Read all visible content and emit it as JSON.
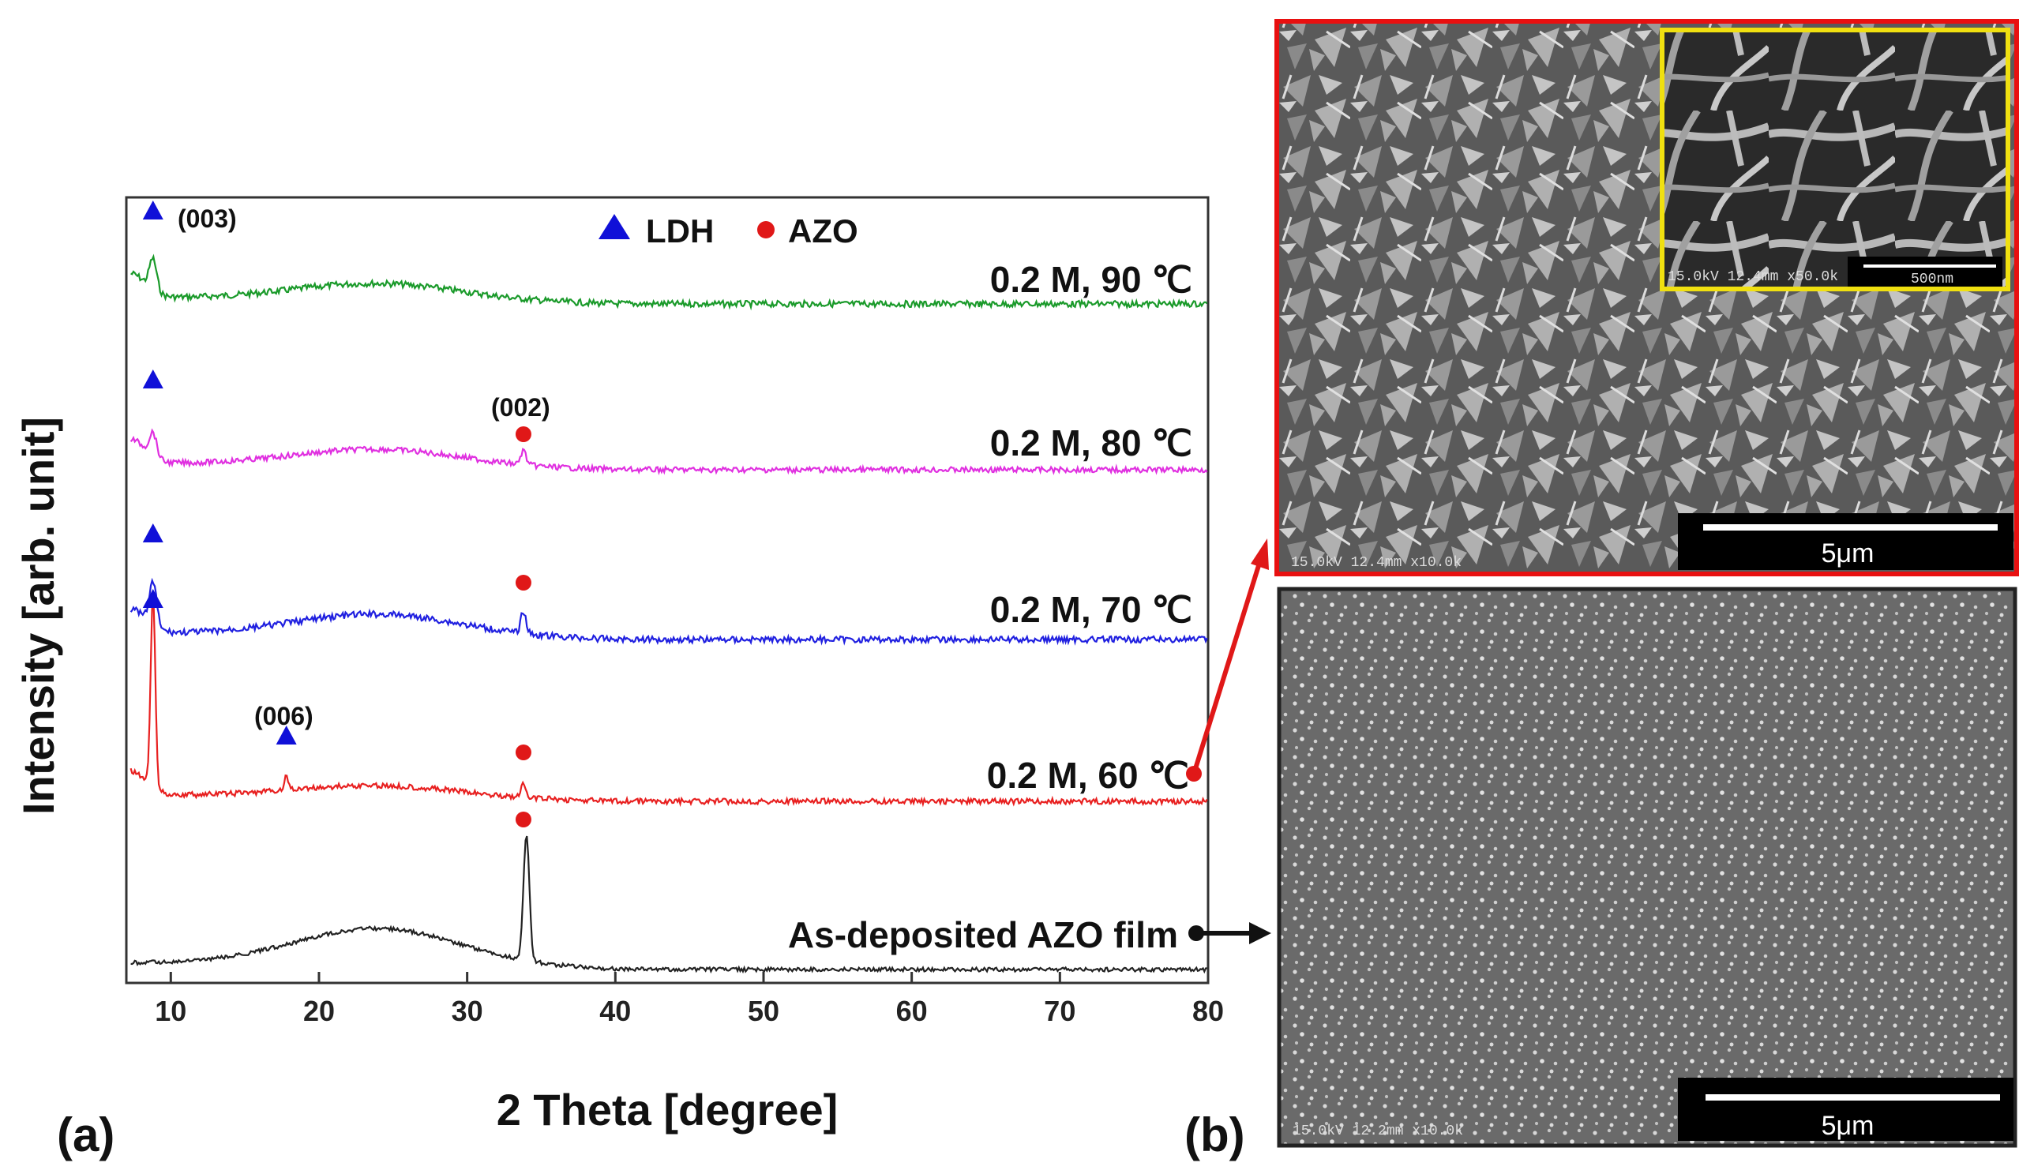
{
  "panels": {
    "a": "(a)",
    "b": "(b)"
  },
  "chart_data": {
    "type": "line",
    "xlabel": "2 Theta [degree]",
    "ylabel": "Intensity [arb. unit]",
    "xlim": [
      7,
      80
    ],
    "xticks": [
      10,
      20,
      30,
      40,
      50,
      60,
      70,
      80
    ],
    "grid": false,
    "legend": {
      "placement": "top-center",
      "entries": [
        {
          "label": "LDH",
          "marker": "triangle",
          "color": "#1010d8"
        },
        {
          "label": "AZO",
          "marker": "circle",
          "color": "#e01818"
        }
      ]
    },
    "series": [
      {
        "name": "0.2 M, 90 ℃",
        "color": "#1a9a2a"
      },
      {
        "name": "0.2 M, 80 ℃",
        "color": "#e030e0"
      },
      {
        "name": "0.2 M, 70 ℃",
        "color": "#2020e0"
      },
      {
        "name": "0.2 M, 60 ℃",
        "color": "#e82020"
      },
      {
        "name": "As-deposited AZO film",
        "color": "#222222"
      }
    ],
    "peak_labels": [
      {
        "text": "(003)",
        "x": 8.8
      },
      {
        "text": "(002)",
        "x": 33.8
      },
      {
        "text": "(006)",
        "x": 17.8
      }
    ]
  },
  "sem_images": {
    "top": {
      "scale_bar": "5μm",
      "meta": "15.0kV 12.4mm x10.0k",
      "inset_meta": "15.0kV 12.4mm x50.0k",
      "inset_scale": "500nm"
    },
    "bottom": {
      "scale_bar": "5μm",
      "meta": "15.0kV 12.2mm x10.0k"
    }
  }
}
